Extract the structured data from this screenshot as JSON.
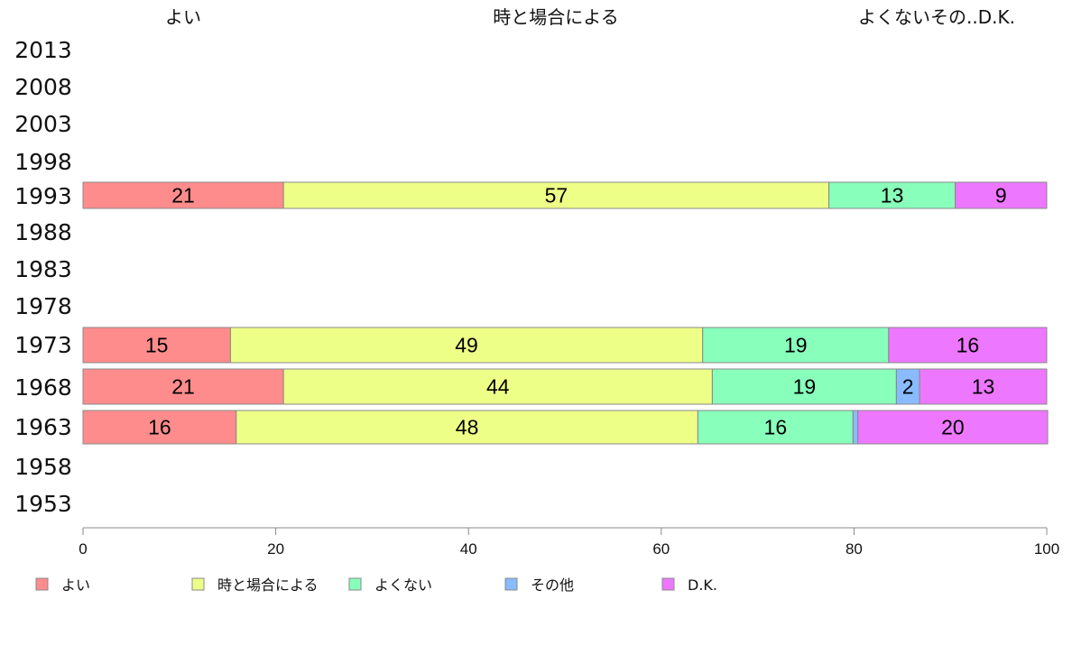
{
  "chart_data": {
    "type": "bar",
    "orientation": "horizontal-stacked-percent",
    "top_labels": [
      "よい",
      "時と場合による",
      "よくないその..D.K."
    ],
    "categories": [
      "2013",
      "2008",
      "2003",
      "1998",
      "1993",
      "1988",
      "1983",
      "1978",
      "1973",
      "1968",
      "1963",
      "1958",
      "1953"
    ],
    "series": [
      {
        "name": "よい",
        "color": "#ff8c8c",
        "values": [
          null,
          null,
          null,
          null,
          20.8,
          null,
          null,
          null,
          15.3,
          20.8,
          15.9,
          null,
          null
        ],
        "labels": [
          "",
          "",
          "",
          "",
          "21",
          "",
          "",
          "",
          "15",
          "21",
          "16",
          "",
          ""
        ]
      },
      {
        "name": "時と場合による",
        "color": "#eeff88",
        "values": [
          null,
          null,
          null,
          null,
          56.6,
          null,
          null,
          null,
          49.0,
          44.5,
          47.9,
          null,
          null
        ],
        "labels": [
          "",
          "",
          "",
          "",
          "57",
          "",
          "",
          "",
          "49",
          "44",
          "48",
          "",
          ""
        ]
      },
      {
        "name": "よくない",
        "color": "#88ffbb",
        "values": [
          null,
          null,
          null,
          null,
          13.1,
          null,
          null,
          null,
          19.3,
          19.1,
          16.1,
          null,
          null
        ],
        "labels": [
          "",
          "",
          "",
          "",
          "13",
          "",
          "",
          "",
          "19",
          "19",
          "16",
          "",
          ""
        ]
      },
      {
        "name": "その他",
        "color": "#88bbff",
        "values": [
          null,
          null,
          null,
          null,
          0,
          null,
          null,
          null,
          0,
          2.4,
          0.5,
          null,
          null
        ],
        "labels": [
          "",
          "",
          "",
          "",
          "",
          "",
          "",
          "",
          "",
          "2",
          "",
          "",
          ""
        ]
      },
      {
        "name": "D.K.",
        "color": "#ee77ff",
        "values": [
          null,
          null,
          null,
          null,
          9.5,
          null,
          null,
          null,
          16.4,
          13.2,
          19.7,
          null,
          null
        ],
        "labels": [
          "",
          "",
          "",
          "",
          "9",
          "",
          "",
          "",
          "16",
          "13",
          "20",
          "",
          ""
        ]
      }
    ],
    "xlim": [
      0,
      100
    ],
    "xticks": [
      "0",
      "20",
      "40",
      "60",
      "80",
      "100"
    ],
    "legend_position": "bottom",
    "grid": false
  }
}
